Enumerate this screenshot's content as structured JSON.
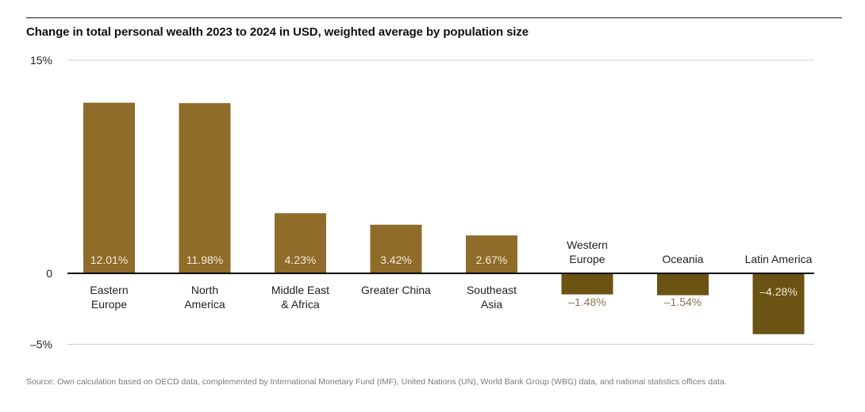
{
  "chart_data": {
    "type": "bar",
    "title": "Change in total personal wealth 2023 to 2024 in USD, weighted average by population size",
    "categories": [
      "Eastern Europe",
      "North America",
      "Middle East & Africa",
      "Greater China",
      "Southeast Asia",
      "Western Europe",
      "Oceania",
      "Latin America"
    ],
    "category_lines": [
      [
        "Eastern",
        "Europe"
      ],
      [
        "North",
        "America"
      ],
      [
        "Middle East",
        "& Africa"
      ],
      [
        "Greater China"
      ],
      [
        "Southeast",
        "Asia"
      ],
      [
        "Western",
        "Europe"
      ],
      [
        "Oceania"
      ],
      [
        "Latin America"
      ]
    ],
    "values": [
      12.01,
      11.98,
      4.23,
      3.42,
      2.67,
      -1.48,
      -1.54,
      -4.28
    ],
    "value_labels": [
      "12.01%",
      "11.98%",
      "4.23%",
      "3.42%",
      "2.67%",
      "–1.48%",
      "–1.54%",
      "–4.28%"
    ],
    "xlabel": "",
    "ylabel": "",
    "ylim": [
      -5,
      15
    ],
    "yticks": [
      15,
      0,
      -5
    ],
    "ytick_labels": [
      "15%",
      "0",
      "–5%"
    ],
    "grid": true,
    "legend": "none",
    "colors": {
      "positive": "#8f6c2a",
      "negative": "#6b5314",
      "label_on_bar": "#f3ead8",
      "label_below": "#8a7450",
      "axis": "#000000",
      "grid": "#cccccc"
    }
  },
  "source": "Source: Own calculation based on OECD data, complemented by International Monetary Fund (IMF), United Nations (UN), World Bank Group (WBG) data, and national statistics offices data."
}
